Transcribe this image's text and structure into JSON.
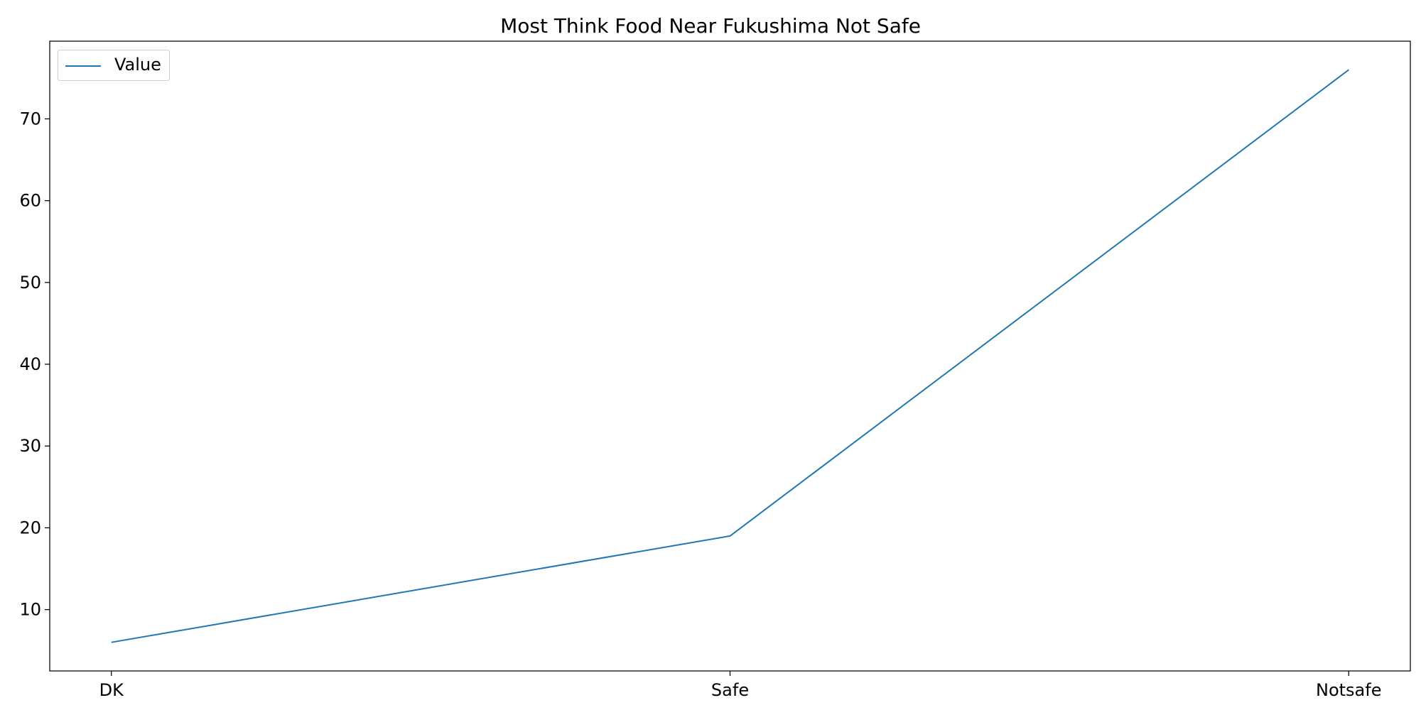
{
  "chart_data": {
    "type": "line",
    "title": "Most Think Food Near Fukushima Not Safe",
    "xlabel": "",
    "ylabel": "",
    "categories": [
      "DK",
      "Safe",
      "Notsafe"
    ],
    "series": [
      {
        "name": "Value",
        "values": [
          6,
          19,
          76
        ],
        "color": "#1f77b4"
      }
    ],
    "ylim": [
      2.5,
      79.5
    ],
    "yticks": [
      10,
      20,
      30,
      40,
      50,
      60,
      70
    ],
    "grid": false,
    "legend_position": "top-left"
  }
}
